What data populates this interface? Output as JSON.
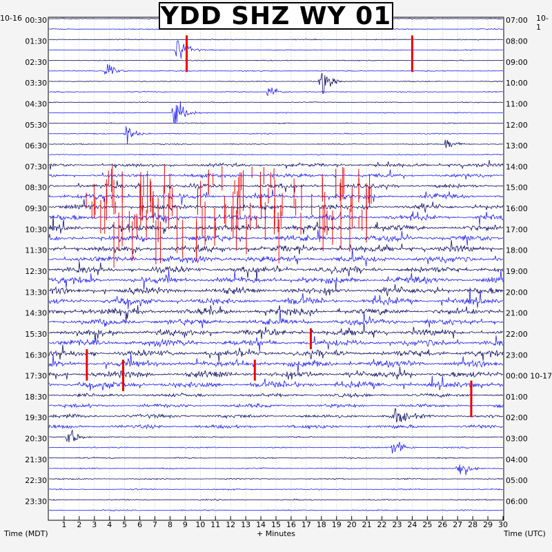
{
  "title": "YDD SHZ WY 01",
  "left_date": "10-16",
  "right_date": "10-1",
  "x_axis_label": "+ Minutes",
  "left_axis_title": "Time (MDT)",
  "right_axis_title": "Time (UTC)",
  "colors": {
    "trace_blue": "#1a1aff",
    "trace_navy": "#0b0b66",
    "pick_red": "#ee0000",
    "grid": "#9a9a9a",
    "background": "#ffffff"
  },
  "chart_data": {
    "type": "line",
    "title": "YDD SHZ WY 01",
    "xlabel": "+ Minutes",
    "ylabel_left": "Time (MDT)",
    "ylabel_right": "Time (UTC)",
    "xlim": [
      0,
      30
    ],
    "x_ticks": [
      "1",
      "2",
      "3",
      "4",
      "5",
      "6",
      "7",
      "8",
      "9",
      "10",
      "11",
      "12",
      "13",
      "14",
      "15",
      "16",
      "17",
      "18",
      "19",
      "20",
      "21",
      "22",
      "23",
      "24",
      "25",
      "26",
      "27",
      "28",
      "29",
      "30"
    ],
    "left_ticks": [
      "00:30",
      "01:30",
      "02:30",
      "03:30",
      "04:30",
      "05:30",
      "06:30",
      "07:30",
      "08:30",
      "09:30",
      "10:30",
      "11:30",
      "12:30",
      "13:30",
      "14:30",
      "15:30",
      "16:30",
      "17:30",
      "18:30",
      "19:30",
      "20:30",
      "21:30",
      "22:30",
      "23:30"
    ],
    "right_ticks": [
      "07:00",
      "08:00",
      "09:00",
      "10:00",
      "11:00",
      "12:00",
      "13:00",
      "14:00",
      "15:00",
      "16:00",
      "17:00",
      "18:00",
      "19:00",
      "20:00",
      "21:00",
      "22:00",
      "23:00",
      "00:00 10-17",
      "01:00",
      "02:00",
      "03:00",
      "04:00",
      "05:00",
      "06:00"
    ],
    "traces_per_hour": 2,
    "trace_count": 48,
    "minutes_per_trace": 30,
    "grid": true,
    "events": [
      {
        "row": 2,
        "minute": 9.1,
        "amp": 3.0,
        "color": "pick_red",
        "rows_span": 3.5
      },
      {
        "row": 2,
        "minute": 24.0,
        "amp": 3.0,
        "color": "pick_red",
        "rows_span": 3.5
      },
      {
        "row": 3,
        "minute": 8.6,
        "amp": 1.6
      },
      {
        "row": 5,
        "minute": 3.9,
        "amp": 0.9
      },
      {
        "row": 6,
        "minute": 18.1,
        "amp": 2.0
      },
      {
        "row": 7,
        "minute": 14.7,
        "amp": 0.8
      },
      {
        "row": 9,
        "minute": 8.4,
        "amp": 2.0
      },
      {
        "row": 11,
        "minute": 5.2,
        "amp": 1.0
      },
      {
        "row": 12,
        "minute": 26.4,
        "amp": 0.8
      },
      {
        "row": 32,
        "minute": 2.5,
        "amp": 1.8,
        "color": "pick_red",
        "rows_span": 3.0
      },
      {
        "row": 33,
        "minute": 4.9,
        "amp": 1.8,
        "color": "pick_red",
        "rows_span": 3.0
      },
      {
        "row": 33,
        "minute": 13.6,
        "amp": 1.2,
        "color": "pick_red",
        "rows_span": 2.0
      },
      {
        "row": 30,
        "minute": 17.3,
        "amp": 1.2,
        "color": "pick_red",
        "rows_span": 2.0
      },
      {
        "row": 35,
        "minute": 27.9,
        "amp": 2.5,
        "color": "pick_red",
        "rows_span": 3.5
      },
      {
        "row": 38,
        "minute": 22.9,
        "amp": 1.2
      },
      {
        "row": 41,
        "minute": 22.9,
        "amp": 1.4
      },
      {
        "row": 43,
        "minute": 27.2,
        "amp": 1.2
      },
      {
        "row": 40,
        "minute": 1.4,
        "amp": 1.2
      }
    ],
    "red_burst": {
      "start_row": 14,
      "end_row": 21,
      "minute_from": 1.9,
      "minute_to": 21.3
    }
  }
}
